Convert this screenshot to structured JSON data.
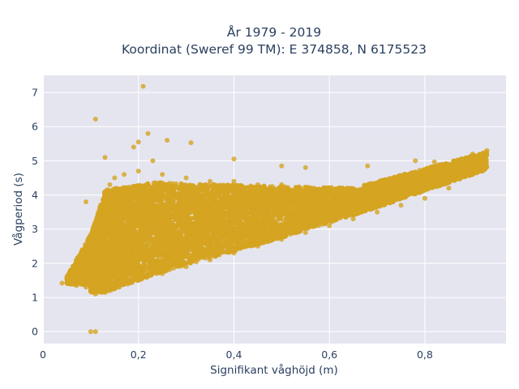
{
  "chart_data": {
    "type": "scatter",
    "title_line1": "År 1979 - 2019",
    "title_line2": "Koordinat (Sweref 99 TM): E 374858, N 6175523",
    "xlabel": "Signifikant våghöjd (m)",
    "ylabel": "Vågperiod (s)",
    "xlim": [
      0,
      0.97
    ],
    "ylim": [
      -0.35,
      7.5
    ],
    "x_ticks": [
      "0",
      "0,2",
      "0,4",
      "0,6",
      "0,8"
    ],
    "y_ticks": [
      "0",
      "1",
      "2",
      "3",
      "4",
      "5",
      "6",
      "7"
    ],
    "marker_color": "#d4a420",
    "plot_bg": "#e5e5f0",
    "grid_color": "#ffffff",
    "grid": true,
    "series": [
      {
        "values": [
          [
            0.04,
            1.42
          ],
          [
            0.06,
            1.5
          ],
          [
            0.07,
            1.35
          ],
          [
            0.08,
            1.45
          ],
          [
            0.09,
            1.3
          ],
          [
            0.09,
            1.55
          ],
          [
            0.1,
            1.2
          ],
          [
            0.1,
            2.2
          ],
          [
            0.1,
            2.5
          ],
          [
            0.11,
            1.1
          ],
          [
            0.11,
            3.0
          ],
          [
            0.12,
            1.2
          ],
          [
            0.12,
            3.5
          ],
          [
            0.13,
            1.15
          ],
          [
            0.13,
            4.0
          ],
          [
            0.14,
            1.2
          ],
          [
            0.14,
            4.3
          ],
          [
            0.15,
            1.25
          ],
          [
            0.15,
            4.5
          ],
          [
            0.16,
            1.3
          ],
          [
            0.17,
            4.6
          ],
          [
            0.2,
            1.5
          ],
          [
            0.2,
            4.7
          ],
          [
            0.25,
            1.7
          ],
          [
            0.25,
            4.6
          ],
          [
            0.3,
            1.9
          ],
          [
            0.3,
            4.5
          ],
          [
            0.35,
            2.1
          ],
          [
            0.35,
            4.4
          ],
          [
            0.4,
            2.3
          ],
          [
            0.4,
            4.4
          ],
          [
            0.45,
            2.5
          ],
          [
            0.45,
            4.3
          ],
          [
            0.5,
            2.7
          ],
          [
            0.5,
            4.3
          ],
          [
            0.55,
            2.9
          ],
          [
            0.55,
            4.2
          ],
          [
            0.6,
            3.1
          ],
          [
            0.6,
            4.2
          ],
          [
            0.65,
            3.3
          ],
          [
            0.65,
            4.1
          ],
          [
            0.7,
            3.5
          ],
          [
            0.7,
            4.2
          ],
          [
            0.75,
            3.7
          ],
          [
            0.75,
            4.3
          ],
          [
            0.8,
            3.9
          ],
          [
            0.8,
            4.5
          ],
          [
            0.85,
            4.2
          ],
          [
            0.85,
            4.8
          ],
          [
            0.9,
            4.9
          ],
          [
            0.9,
            5.2
          ],
          [
            0.92,
            5.1
          ],
          [
            0.93,
            5.3
          ],
          [
            0.11,
            6.22
          ],
          [
            0.21,
            7.18
          ],
          [
            0.1,
            0.0
          ],
          [
            0.11,
            0.0
          ],
          [
            0.19,
            5.4
          ],
          [
            0.2,
            5.55
          ],
          [
            0.22,
            5.8
          ],
          [
            0.26,
            5.6
          ],
          [
            0.31,
            5.53
          ],
          [
            0.23,
            5.0
          ],
          [
            0.13,
            5.1
          ],
          [
            0.4,
            5.05
          ],
          [
            0.5,
            4.85
          ],
          [
            0.55,
            4.8
          ],
          [
            0.68,
            4.85
          ],
          [
            0.78,
            5.0
          ],
          [
            0.82,
            4.97
          ],
          [
            0.09,
            3.8
          ]
        ]
      }
    ],
    "marker_opacity": 0.8,
    "marker_size": 6,
    "point_count": 15000
  }
}
